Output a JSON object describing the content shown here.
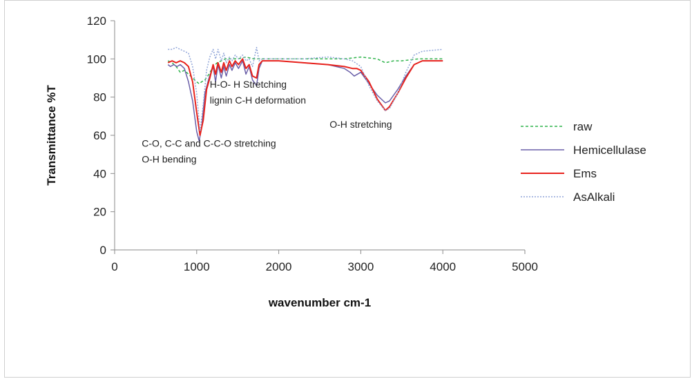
{
  "chart_data": {
    "type": "line",
    "title": "",
    "xlabel": "wavenumber cm-1",
    "ylabel": "Transmittance %T",
    "xlim": [
      0,
      5000
    ],
    "ylim": [
      0,
      120
    ],
    "xticks": [
      0,
      1000,
      2000,
      3000,
      4000,
      5000
    ],
    "yticks": [
      0,
      20,
      40,
      60,
      80,
      100,
      120
    ],
    "grid": false,
    "legend_position": "right",
    "annotations": [
      {
        "lines": [
          "C-O, C-C and C-C-O stretching",
          "O-H bending"
        ],
        "x": 330,
        "y": 54
      },
      {
        "lines": [
          "H-O- H Stretching",
          "lignin C-H deformation"
        ],
        "x": 1160,
        "y": 85
      },
      {
        "lines": [
          "O-H stretching"
        ],
        "x": 2620,
        "y": 64
      }
    ],
    "series": [
      {
        "name": "raw",
        "color": "#2db34a",
        "dash": "4,3",
        "x": [
          650,
          700,
          750,
          800,
          850,
          900,
          950,
          1000,
          1030,
          1060,
          1100,
          1150,
          1200,
          1250,
          1300,
          1350,
          1400,
          1500,
          1600,
          1700,
          1800,
          2000,
          2500,
          2800,
          3000,
          3200,
          3300,
          3400,
          3500,
          3700,
          4000
        ],
        "y": [
          99,
          98,
          96,
          93,
          94,
          92,
          90,
          88,
          87,
          88,
          89,
          92,
          96,
          98,
          99,
          100,
          100,
          100,
          101,
          100,
          100,
          100,
          100,
          100,
          101,
          100,
          98,
          99,
          99,
          100,
          100
        ]
      },
      {
        "name": "Hemicellulase",
        "color": "#6a5fa8",
        "dash": "",
        "x": [
          650,
          680,
          720,
          760,
          800,
          850,
          900,
          950,
          1000,
          1030,
          1060,
          1100,
          1150,
          1200,
          1230,
          1260,
          1300,
          1330,
          1360,
          1400,
          1430,
          1470,
          1510,
          1560,
          1600,
          1640,
          1680,
          1730,
          1760,
          1800,
          2000,
          2300,
          2600,
          2800,
          2870,
          2920,
          3000,
          3100,
          3200,
          3300,
          3350,
          3450,
          3550,
          3650,
          3750,
          4000
        ],
        "y": [
          97,
          96,
          97,
          96,
          97,
          95,
          88,
          78,
          62,
          57,
          64,
          82,
          90,
          96,
          88,
          97,
          90,
          96,
          91,
          97,
          94,
          98,
          95,
          99,
          92,
          96,
          89,
          86,
          95,
          99,
          99,
          98,
          97,
          95,
          93,
          91,
          93,
          87,
          81,
          77,
          78,
          84,
          91,
          97,
          99,
          99
        ]
      },
      {
        "name": "Ems",
        "color": "#e8211b",
        "dash": "",
        "x": [
          650,
          700,
          750,
          800,
          850,
          900,
          950,
          1000,
          1040,
          1080,
          1120,
          1160,
          1200,
          1230,
          1260,
          1300,
          1330,
          1360,
          1400,
          1430,
          1470,
          1510,
          1560,
          1600,
          1640,
          1680,
          1730,
          1760,
          1800,
          2000,
          2300,
          2600,
          2800,
          2900,
          2950,
          3000,
          3100,
          3200,
          3300,
          3350,
          3450,
          3550,
          3650,
          3750,
          4000
        ],
        "y": [
          98,
          99,
          98,
          99,
          98,
          96,
          88,
          72,
          60,
          68,
          84,
          90,
          97,
          92,
          98,
          93,
          98,
          94,
          99,
          96,
          99,
          97,
          100,
          95,
          97,
          91,
          90,
          97,
          99,
          99,
          98,
          97,
          96,
          95,
          95,
          94,
          88,
          79,
          73,
          75,
          82,
          90,
          97,
          99,
          99
        ]
      },
      {
        "name": "AsAlkali",
        "color": "#8fa4d8",
        "dash": "2,2",
        "x": [
          650,
          700,
          750,
          800,
          850,
          900,
          950,
          1000,
          1040,
          1080,
          1120,
          1160,
          1200,
          1230,
          1260,
          1300,
          1330,
          1360,
          1400,
          1430,
          1470,
          1510,
          1560,
          1600,
          1640,
          1680,
          1730,
          1760,
          1800,
          2000,
          2300,
          2600,
          2800,
          2900,
          3000,
          3100,
          3200,
          3300,
          3350,
          3450,
          3550,
          3650,
          3750,
          4000
        ],
        "y": [
          105,
          105,
          106,
          105,
          104,
          103,
          96,
          82,
          62,
          76,
          94,
          101,
          105,
          100,
          105,
          99,
          103,
          98,
          101,
          99,
          102,
          100,
          102,
          99,
          100,
          96,
          106,
          99,
          100,
          100,
          100,
          101,
          100,
          99,
          96,
          86,
          78,
          73,
          74,
          82,
          93,
          102,
          104,
          105
        ]
      }
    ]
  }
}
